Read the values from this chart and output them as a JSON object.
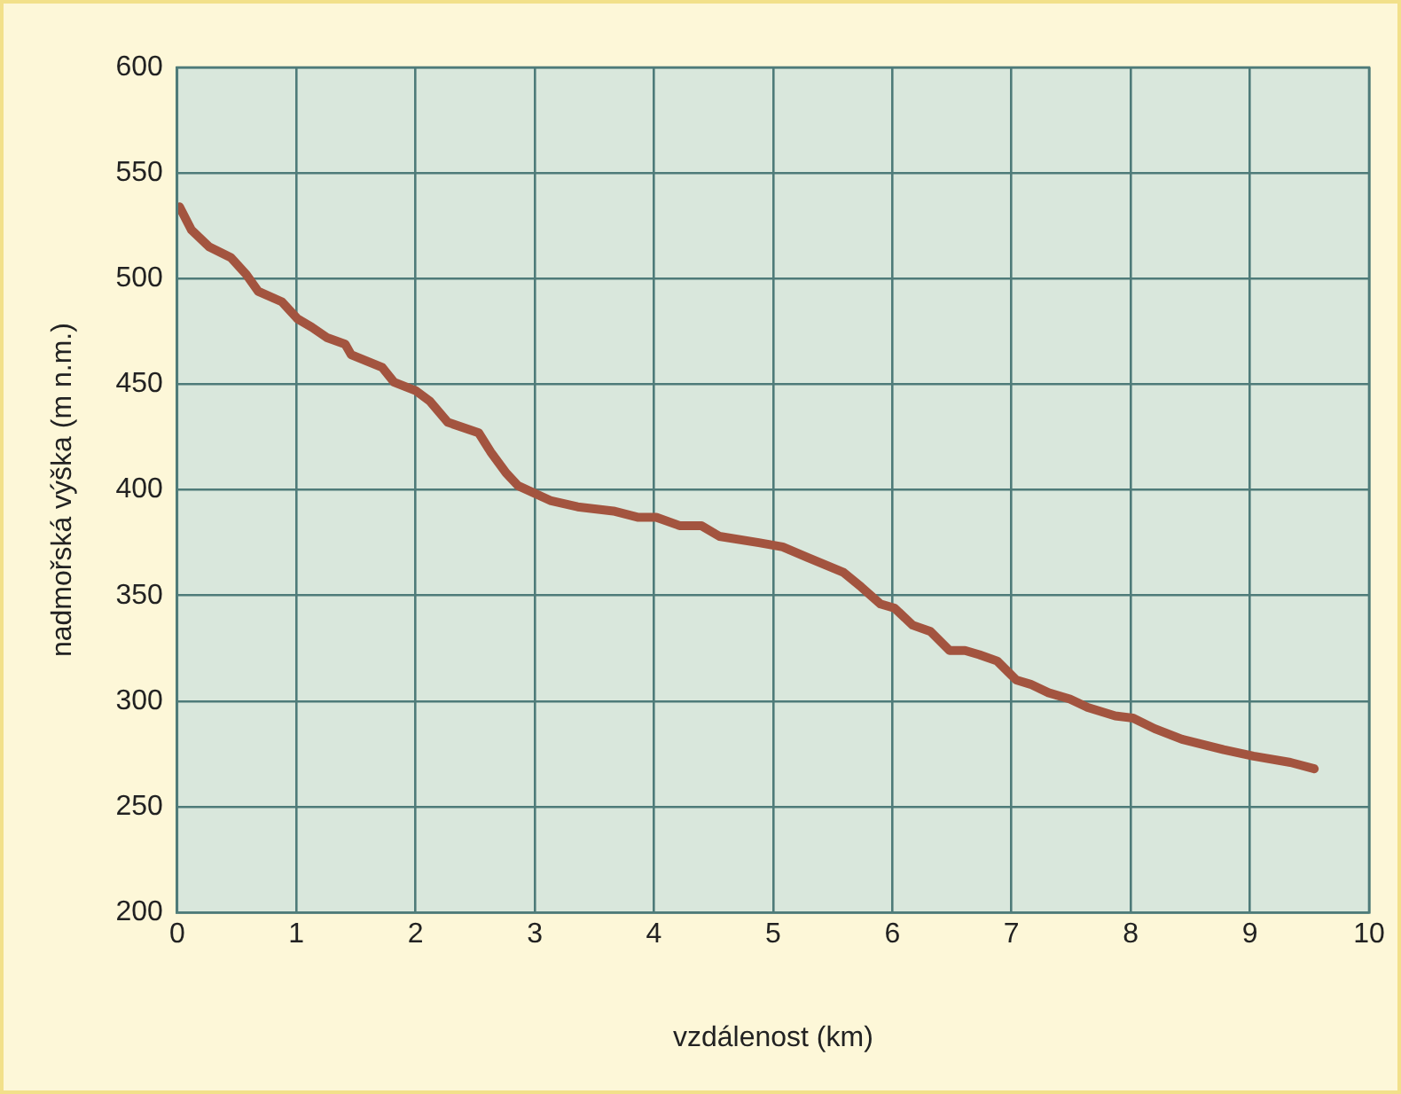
{
  "chart_data": {
    "type": "line",
    "xlabel": "vzdálenost (km)",
    "ylabel": "nadmořská výška (m n.m.)",
    "xlim": [
      0,
      10
    ],
    "xticks": [
      0,
      1,
      2,
      3,
      4,
      5,
      6,
      7,
      8,
      9,
      10
    ],
    "ylim": [
      200,
      600
    ],
    "yticks": [
      200,
      250,
      300,
      350,
      400,
      450,
      500,
      550,
      600
    ],
    "grid": true,
    "legend": false,
    "marker": "none",
    "line_style": "solid",
    "series": [
      {
        "color": "#a3543f",
        "x": [
          0.02,
          0.12,
          0.27,
          0.45,
          0.58,
          0.68,
          0.88,
          1.01,
          1.13,
          1.26,
          1.41,
          1.46,
          1.72,
          1.82,
          2.0,
          2.12,
          2.27,
          2.53,
          2.63,
          2.76,
          2.86,
          3.13,
          3.36,
          3.66,
          3.87,
          4.02,
          4.22,
          4.4,
          4.55,
          4.88,
          5.08,
          5.29,
          5.59,
          5.74,
          5.9,
          6.02,
          6.17,
          6.32,
          6.48,
          6.61,
          6.73,
          6.88,
          7.04,
          7.16,
          7.31,
          7.49,
          7.64,
          7.87,
          8.02,
          8.2,
          8.43,
          8.78,
          9.03,
          9.34,
          9.54
        ],
        "values": [
          534,
          523,
          515,
          510,
          502,
          494,
          489,
          481,
          477,
          472,
          469,
          464,
          458,
          451,
          447,
          442,
          432,
          427,
          418,
          408,
          402,
          395,
          392,
          390,
          387,
          387,
          383,
          383,
          378,
          375,
          373,
          368,
          361,
          354,
          346,
          344,
          336,
          333,
          324,
          324,
          322,
          319,
          310,
          308,
          304,
          301,
          297,
          293,
          292,
          287,
          282,
          277,
          274,
          271,
          268
        ]
      }
    ]
  }
}
